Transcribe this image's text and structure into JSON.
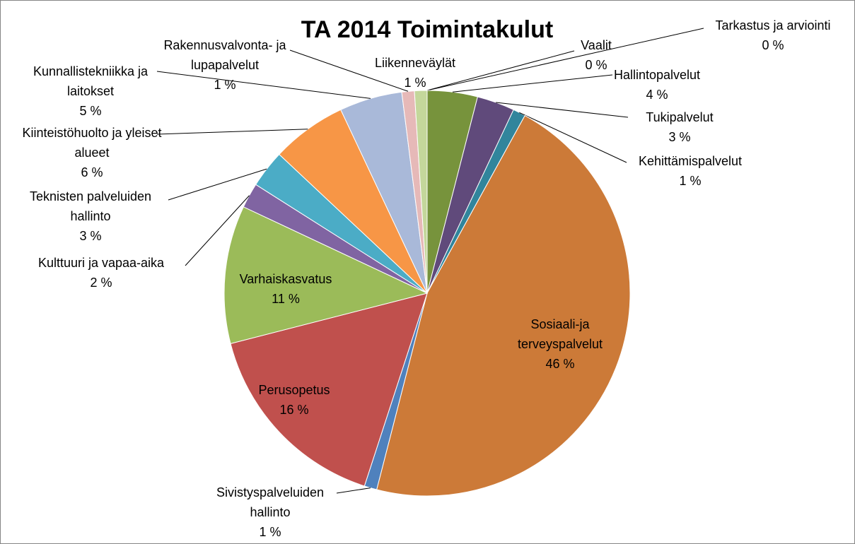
{
  "chart_data": {
    "type": "pie",
    "title": "TA 2014 Toimintakulut",
    "categories": [
      "Tarkastus ja arviointi",
      "Vaalit",
      "Hallintopalvelut",
      "Tukipalvelut",
      "Kehittämispalvelut",
      "Sosiaali-ja terveyspalvelut",
      "Sivistyspalveluiden hallinto",
      "Perusopetus",
      "Varhaiskasvatus",
      "Kulttuuri ja vapaa-aika",
      "Teknisten palveluiden hallinto",
      "Kiinteistöhuolto ja yleiset alueet",
      "Kunnallistekniikka ja laitokset",
      "Rakennusvalvonta- ja lupapalvelut",
      "Liikenneväylät"
    ],
    "values": [
      0,
      0,
      4,
      3,
      1,
      46,
      1,
      16,
      11,
      2,
      3,
      6,
      5,
      1,
      1
    ],
    "value_labels": [
      "0 %",
      "0 %",
      "4 %",
      "3 %",
      "1 %",
      "46 %",
      "1 %",
      "16 %",
      "11 %",
      "2 %",
      "3 %",
      "6 %",
      "5 %",
      "1 %",
      "1 %"
    ],
    "colors": [
      "#953735",
      "#254061",
      "#77933c",
      "#604a7b",
      "#31859c",
      "#cc7a38",
      "#4f81bd",
      "#c0504d",
      "#9bbb59",
      "#8064a2",
      "#4bacc6",
      "#f79646",
      "#a9b9d9",
      "#e6b9b8",
      "#c4d79b"
    ]
  }
}
